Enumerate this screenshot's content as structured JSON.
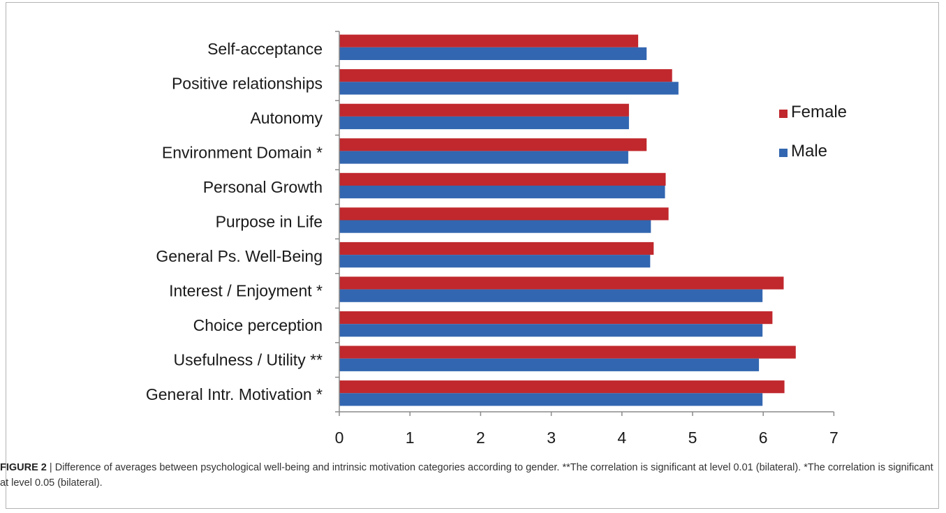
{
  "figure": {
    "label": "FIGURE 2",
    "separator": "|",
    "caption": "Difference of averages between psychological well-being and intrinsic motivation categories according to gender. **The correlation is significant at level 0.01 (bilateral). *The correlation is significant at level 0.05 (bilateral)."
  },
  "chart_data": {
    "type": "bar",
    "orientation": "horizontal",
    "categories": [
      "Self-acceptance",
      "Positive relationships",
      "Autonomy",
      "Environment Domain *",
      "Personal Growth",
      "Purpose in Life",
      "General Ps. Well-Being",
      "Interest / Enjoyment *",
      "Choice perception",
      "Usefulness / Utility **",
      "General Intr. Motivation *"
    ],
    "series": [
      {
        "name": "Female",
        "color": "#c0282d",
        "values": [
          4.23,
          4.71,
          4.1,
          4.35,
          4.62,
          4.66,
          4.45,
          6.29,
          6.13,
          6.46,
          6.3
        ]
      },
      {
        "name": "Male",
        "color": "#3266b0",
        "values": [
          4.35,
          4.8,
          4.1,
          4.09,
          4.61,
          4.41,
          4.4,
          5.99,
          5.99,
          5.94,
          5.99
        ]
      }
    ],
    "xlim": [
      0,
      7
    ],
    "xticks": [
      "0",
      "1",
      "2",
      "3",
      "4",
      "5",
      "6",
      "7"
    ],
    "grid": false,
    "legend_position": "right",
    "title": "",
    "xlabel": "",
    "ylabel": ""
  }
}
